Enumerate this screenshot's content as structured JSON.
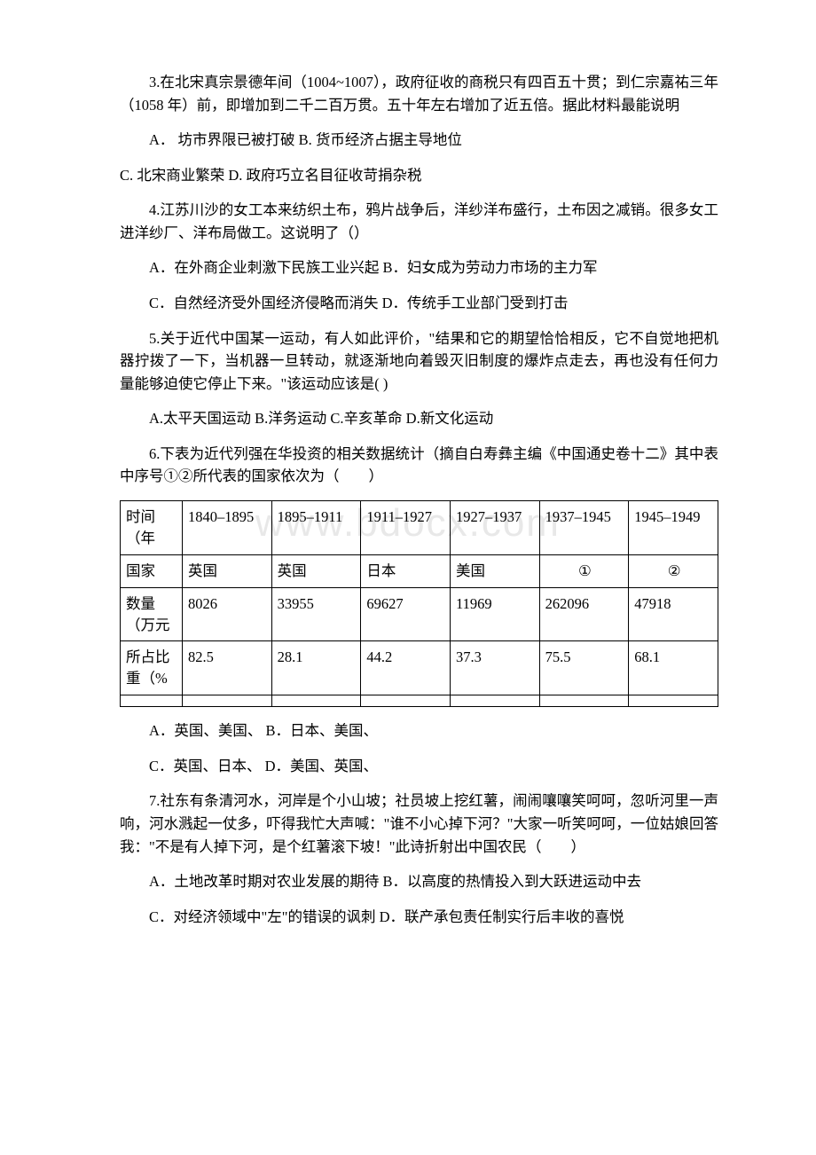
{
  "q3": {
    "text": "3.在北宋真宗景德年间（1004~1007），政府征收的商税只有四百五十贯；到仁宗嘉祐三年（1058 年）前，即增加到二千二百万贯。五十年左右增加了近五倍。据此材料最能说明",
    "opt1": "A． 坊市界限已被打破 B. 货币经济占据主导地位",
    "opt2": " C. 北宋商业繁荣 D. 政府巧立名目征收苛捐杂税"
  },
  "q4": {
    "text": "4.江苏川沙的女工本来纺织土布，鸦片战争后，洋纱洋布盛行，土布因之减销。很多女工进洋纱厂、洋布局做工。这说明了（）",
    "opt1": "A．在外商企业刺激下民族工业兴起  B．妇女成为劳动力市场的主力军",
    "opt2": "C．自然经济受外国经济侵略而消失  D．传统手工业部门受到打击"
  },
  "q5": {
    "text": "5.关于近代中国某一运动，有人如此评价，\"结果和它的期望恰恰相反，它不自觉地把机器拧拨了一下，当机器一旦转动，就逐渐地向着毁灭旧制度的爆炸点走去，再也没有任何力量能够迫使它停止下来。\"该运动应该是( )",
    "opt1": "A.太平天国运动 B.洋务运动 C.辛亥革命 D.新文化运动"
  },
  "q6": {
    "text": "6.下表为近代列强在华投资的相关数据统计（摘自白寿彝主编《中国通史卷十二》其中表中序号①②所代表的国家依次为（　　）",
    "table": {
      "row_time_label": "时间（年",
      "row_time": [
        "1840–1895",
        "1895–1911",
        "1911–1927",
        "1927–1937",
        "1937–1945",
        "1945–1949"
      ],
      "row_country_label": "国家",
      "row_country": [
        "英国",
        "英国",
        "日本",
        "美国",
        "①",
        "②"
      ],
      "row_amount_label": "数量（万元",
      "row_amount": [
        "8026",
        "33955",
        "69627",
        "11969",
        "262096",
        "47918"
      ],
      "row_pct_label": "所占比重（%",
      "row_pct": [
        "82.5",
        "28.1",
        "44.2",
        "37.3",
        "75.5",
        "68.1"
      ]
    },
    "opt1": "A．英国、美国、 B．日本、美国、",
    "opt2": "C．英国、日本、 D．美国、英国、"
  },
  "q7": {
    "text": "7.社东有条清河水，河岸是个小山坡；社员坡上挖红薯，闹闹嚷嚷笑呵呵，忽听河里一声响，河水溅起一仗多，吓得我忙大声喊：\"谁不小心掉下河？\"大家一听笑呵呵，一位姑娘回答我：\"不是有人掉下河，是个红薯滚下坡！\"此诗折射出中国农民（　　）",
    "opt1": "A．土地改革时期对农业发展的期待 B．以高度的热情投入到大跃进运动中去",
    "opt2": "C．对经济领域中\"左\"的错误的讽刺 D．联产承包责任制实行后丰收的喜悦"
  },
  "watermark": "www.bdocx.com"
}
